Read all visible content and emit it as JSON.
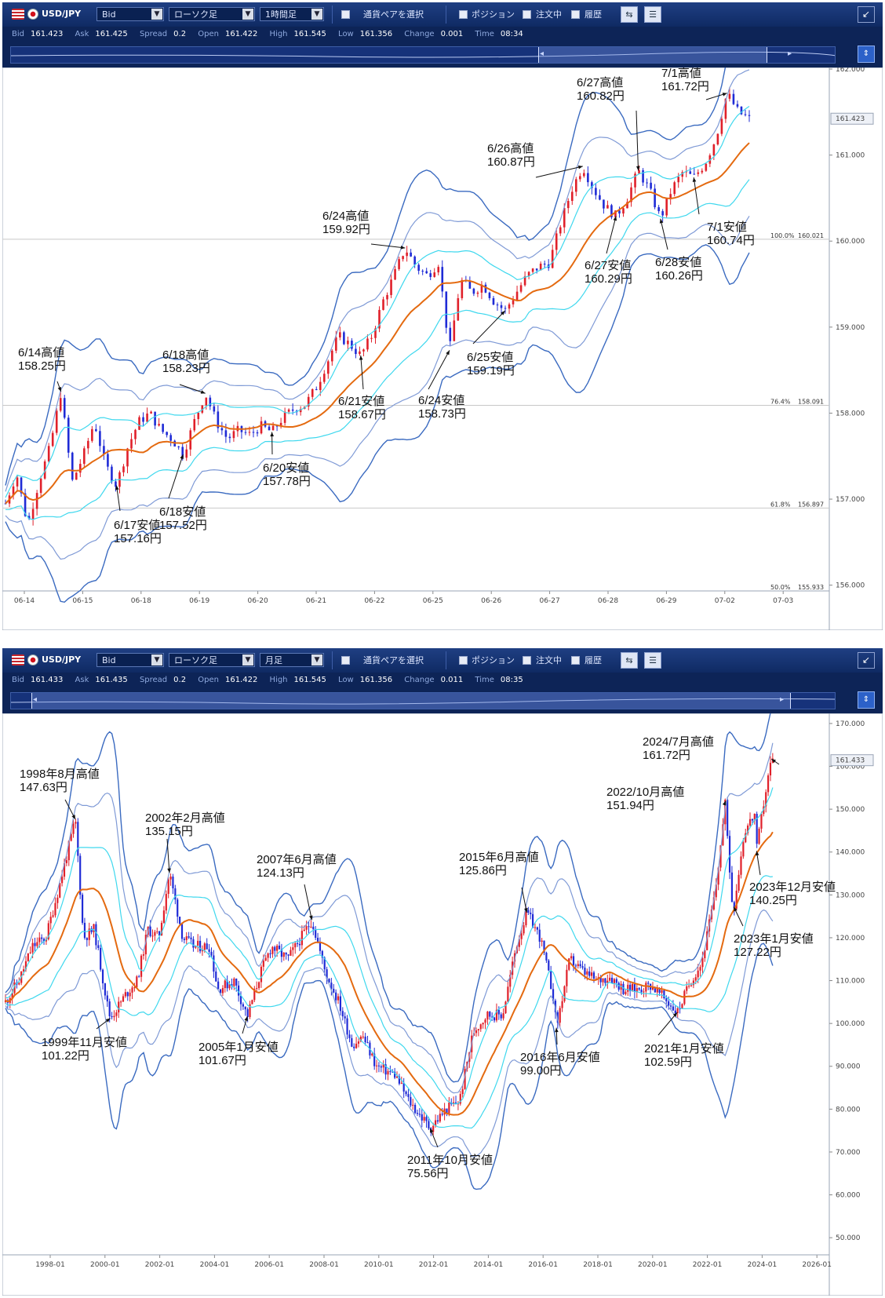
{
  "panels": [
    {
      "toolbar": {
        "symbol": "USD/JPY",
        "price_type": "Bid",
        "chart_type": "ローソク足",
        "interval": "1時間足",
        "pair_select": "通貨ペアを選択",
        "position": "ポジション",
        "orders": "注文中",
        "history": "履歴"
      },
      "info": {
        "bid_label": "Bid",
        "bid": "161.423",
        "ask_label": "Ask",
        "ask": "161.425",
        "spread_label": "Spread",
        "spread": "0.2",
        "open_label": "Open",
        "open": "161.422",
        "high_label": "High",
        "high": "161.545",
        "low_label": "Low",
        "low": "161.356",
        "change_label": "Change",
        "change": "0.001",
        "time_label": "Time",
        "time": "08:34"
      }
    },
    {
      "toolbar": {
        "symbol": "USD/JPY",
        "price_type": "Bid",
        "chart_type": "ローソク足",
        "interval": "月足",
        "pair_select": "通貨ペアを選択",
        "position": "ポジション",
        "orders": "注文中",
        "history": "履歴"
      },
      "info": {
        "bid_label": "Bid",
        "bid": "161.433",
        "ask_label": "Ask",
        "ask": "161.435",
        "spread_label": "Spread",
        "spread": "0.2",
        "open_label": "Open",
        "open": "161.422",
        "high_label": "High",
        "high": "161.545",
        "low_label": "Low",
        "low": "161.356",
        "change_label": "Change",
        "change": "0.011",
        "time_label": "Time",
        "time": "08:35"
      }
    }
  ],
  "colors": {
    "up": "#e0202a",
    "down": "#1f2bd6",
    "ma": "#e46a10",
    "band1": "#3fd8ee",
    "band2": "#7f9ad6",
    "band3": "#3a6ac0",
    "toolbar": "#15357a"
  },
  "chart_data": [
    {
      "type": "candlestick",
      "timeframe": "1時間足",
      "ylim": [
        155.933,
        162.0
      ],
      "y_ticks": [
        "162.000",
        "161.000",
        "160.000",
        "159.000",
        "158.000",
        "157.000",
        "156.000"
      ],
      "x_tick_labels": [
        "06-14",
        "06-15",
        "06-18",
        "06-19",
        "06-20",
        "06-21",
        "06-22",
        "06-25",
        "06-26",
        "06-27",
        "06-28",
        "06-29",
        "07-02",
        "07-03"
      ],
      "current_price": "161.423",
      "fib_levels": [
        {
          "label": "100.0%",
          "value": "160.021"
        },
        {
          "label": "76.4%",
          "value": "158.091"
        },
        {
          "label": "61.8%",
          "value": "156.897"
        },
        {
          "label": "50.0%",
          "value": "155.933"
        }
      ],
      "path": [
        [
          0,
          156.95
        ],
        [
          1,
          157.3
        ],
        [
          2,
          156.7
        ],
        [
          3,
          157.2
        ],
        [
          4,
          157.6
        ],
        [
          5,
          158.25
        ],
        [
          5.5,
          157.7
        ],
        [
          6,
          157.2
        ],
        [
          7,
          157.5
        ],
        [
          8,
          157.9
        ],
        [
          9,
          157.4
        ],
        [
          10,
          157.16
        ],
        [
          11,
          157.6
        ],
        [
          12,
          157.9
        ],
        [
          13,
          158.0
        ],
        [
          14,
          157.8
        ],
        [
          15,
          157.7
        ],
        [
          16,
          157.52
        ],
        [
          17,
          157.9
        ],
        [
          18,
          158.23
        ],
        [
          19,
          157.9
        ],
        [
          20,
          157.7
        ],
        [
          21,
          157.8
        ],
        [
          22,
          157.75
        ],
        [
          23,
          157.85
        ],
        [
          24,
          157.78
        ],
        [
          25,
          157.95
        ],
        [
          26,
          158.05
        ],
        [
          27,
          158.1
        ],
        [
          28,
          158.3
        ],
        [
          29,
          158.6
        ],
        [
          30,
          158.9
        ],
        [
          31,
          158.8
        ],
        [
          32,
          158.67
        ],
        [
          33,
          158.9
        ],
        [
          34,
          159.3
        ],
        [
          35,
          159.6
        ],
        [
          36,
          159.92
        ],
        [
          37,
          159.7
        ],
        [
          38,
          159.6
        ],
        [
          39,
          159.75
        ],
        [
          40,
          158.73
        ],
        [
          41,
          159.55
        ],
        [
          42,
          159.4
        ],
        [
          43,
          159.5
        ],
        [
          44,
          159.3
        ],
        [
          45,
          159.19
        ],
        [
          46,
          159.4
        ],
        [
          47,
          159.6
        ],
        [
          48,
          159.7
        ],
        [
          49,
          159.75
        ],
        [
          50,
          160.2
        ],
        [
          51,
          160.6
        ],
        [
          52,
          160.87
        ],
        [
          53,
          160.6
        ],
        [
          54,
          160.4
        ],
        [
          55,
          160.29
        ],
        [
          56,
          160.5
        ],
        [
          57,
          160.82
        ],
        [
          58,
          160.6
        ],
        [
          59,
          160.26
        ],
        [
          60,
          160.6
        ],
        [
          61,
          160.8
        ],
        [
          62,
          160.74
        ],
        [
          63,
          160.9
        ],
        [
          64,
          161.2
        ],
        [
          65,
          161.72
        ],
        [
          66,
          161.5
        ],
        [
          67,
          161.42
        ]
      ],
      "annotations": [
        {
          "label_date": "6/14高値",
          "label_price": "158.25円",
          "x": 5,
          "price": 158.25
        },
        {
          "label_date": "6/17安値",
          "label_price": "157.16円",
          "x": 10,
          "price": 157.16
        },
        {
          "label_date": "6/18高値",
          "label_price": "158.23円",
          "x": 18,
          "price": 158.23
        },
        {
          "label_date": "6/18安値",
          "label_price": "157.52円",
          "x": 16,
          "price": 157.52
        },
        {
          "label_date": "6/20安値",
          "label_price": "157.78円",
          "x": 24,
          "price": 157.78
        },
        {
          "label_date": "6/21安値",
          "label_price": "158.67円",
          "x": 32,
          "price": 158.67
        },
        {
          "label_date": "6/24高値",
          "label_price": "159.92円",
          "x": 36,
          "price": 159.92
        },
        {
          "label_date": "6/24安値",
          "label_price": "158.73円",
          "x": 40,
          "price": 158.73
        },
        {
          "label_date": "6/25安値",
          "label_price": "159.19円",
          "x": 45,
          "price": 159.19
        },
        {
          "label_date": "6/26高値",
          "label_price": "160.87円",
          "x": 52,
          "price": 160.87
        },
        {
          "label_date": "6/27高値",
          "label_price": "160.82円",
          "x": 57,
          "price": 160.82
        },
        {
          "label_date": "6/27安値",
          "label_price": "160.29円",
          "x": 55,
          "price": 160.29
        },
        {
          "label_date": "6/28安値",
          "label_price": "160.26円",
          "x": 59,
          "price": 160.26
        },
        {
          "label_date": "7/1高値",
          "label_price": "161.72円",
          "x": 65,
          "price": 161.72
        },
        {
          "label_date": "7/1安値",
          "label_price": "160.74円",
          "x": 62,
          "price": 160.74
        }
      ]
    },
    {
      "type": "candlestick",
      "timeframe": "月足",
      "ylim": [
        46,
        172
      ],
      "y_ticks": [
        "170.000",
        "160.000",
        "150.000",
        "140.000",
        "130.000",
        "120.000",
        "110.000",
        "100.000",
        "90.000",
        "80.000",
        "70.000",
        "60.000",
        "50.000"
      ],
      "x_tick_labels": [
        "1998-01",
        "2000-01",
        "2002-01",
        "2004-01",
        "2006-01",
        "2008-01",
        "2010-01",
        "2012-01",
        "2014-01",
        "2016-01",
        "2018-01",
        "2020-01",
        "2022-01",
        "2024-01",
        "2026-01"
      ],
      "current_price": "161.433",
      "path": [
        [
          1996.0,
          105
        ],
        [
          1996.5,
          110
        ],
        [
          1997.0,
          118
        ],
        [
          1997.5,
          120
        ],
        [
          1998.0,
          132
        ],
        [
          1998.6,
          147.63
        ],
        [
          1998.9,
          120
        ],
        [
          1999.3,
          122
        ],
        [
          1999.8,
          104
        ],
        [
          1999.9,
          101.22
        ],
        [
          2000.5,
          107
        ],
        [
          2000.9,
          110
        ],
        [
          2001.3,
          122
        ],
        [
          2001.7,
          120
        ],
        [
          2002.1,
          135.15
        ],
        [
          2002.6,
          120
        ],
        [
          2003.0,
          118
        ],
        [
          2003.6,
          118
        ],
        [
          2003.9,
          108
        ],
        [
          2004.5,
          110
        ],
        [
          2005.0,
          101.67
        ],
        [
          2005.5,
          112
        ],
        [
          2005.9,
          118
        ],
        [
          2006.5,
          115
        ],
        [
          2007.0,
          120
        ],
        [
          2007.4,
          124.13
        ],
        [
          2007.9,
          112
        ],
        [
          2008.4,
          105
        ],
        [
          2008.9,
          95
        ],
        [
          2009.3,
          97
        ],
        [
          2009.8,
          90
        ],
        [
          2010.5,
          88
        ],
        [
          2011.0,
          82
        ],
        [
          2011.8,
          75.56
        ],
        [
          2012.4,
          80
        ],
        [
          2012.9,
          82
        ],
        [
          2013.4,
          98
        ],
        [
          2013.9,
          102
        ],
        [
          2014.5,
          102
        ],
        [
          2015.0,
          118
        ],
        [
          2015.4,
          125.86
        ],
        [
          2015.9,
          120
        ],
        [
          2016.4,
          106
        ],
        [
          2016.5,
          99.0
        ],
        [
          2017.0,
          115
        ],
        [
          2017.5,
          112
        ],
        [
          2018.0,
          110
        ],
        [
          2018.5,
          111
        ],
        [
          2019.0,
          108
        ],
        [
          2019.5,
          108
        ],
        [
          2020.0,
          109
        ],
        [
          2020.5,
          106
        ],
        [
          2021.0,
          102.59
        ],
        [
          2021.5,
          110
        ],
        [
          2021.9,
          114
        ],
        [
          2022.4,
          130
        ],
        [
          2022.8,
          151.94
        ],
        [
          2023.0,
          130
        ],
        [
          2023.1,
          127.22
        ],
        [
          2023.5,
          145
        ],
        [
          2023.9,
          149
        ],
        [
          2023.95,
          140.25
        ],
        [
          2024.2,
          151
        ],
        [
          2024.5,
          161.72
        ],
        [
          2024.55,
          161.4
        ]
      ],
      "annotations": [
        {
          "label_date": "1998年8月高値",
          "label_price": "147.63円",
          "x": 1998.6,
          "price": 147.63
        },
        {
          "label_date": "1999年11月安値",
          "label_price": "101.22円",
          "x": 1999.9,
          "price": 101.22
        },
        {
          "label_date": "2002年2月高値",
          "label_price": "135.15円",
          "x": 2002.1,
          "price": 135.15
        },
        {
          "label_date": "2005年1月安値",
          "label_price": "101.67円",
          "x": 2005.0,
          "price": 101.67
        },
        {
          "label_date": "2007年6月高値",
          "label_price": "124.13円",
          "x": 2007.4,
          "price": 124.13
        },
        {
          "label_date": "2011年10月安値",
          "label_price": "75.56円",
          "x": 2011.8,
          "price": 75.56
        },
        {
          "label_date": "2015年6月高値",
          "label_price": "125.86円",
          "x": 2015.4,
          "price": 125.86
        },
        {
          "label_date": "2016年6月安値",
          "label_price": "99.00円",
          "x": 2016.5,
          "price": 99.0
        },
        {
          "label_date": "2021年1月安値",
          "label_price": "102.59円",
          "x": 2021.0,
          "price": 102.59
        },
        {
          "label_date": "2022/10月高値",
          "label_price": "151.94円",
          "x": 2022.8,
          "price": 151.94
        },
        {
          "label_date": "2023年1月安値",
          "label_price": "127.22円",
          "x": 2023.1,
          "price": 127.22
        },
        {
          "label_date": "2023年12月安値",
          "label_price": "140.25円",
          "x": 2023.95,
          "price": 140.25
        },
        {
          "label_date": "2024/7月高値",
          "label_price": "161.72円",
          "x": 2024.5,
          "price": 161.72
        }
      ]
    }
  ]
}
